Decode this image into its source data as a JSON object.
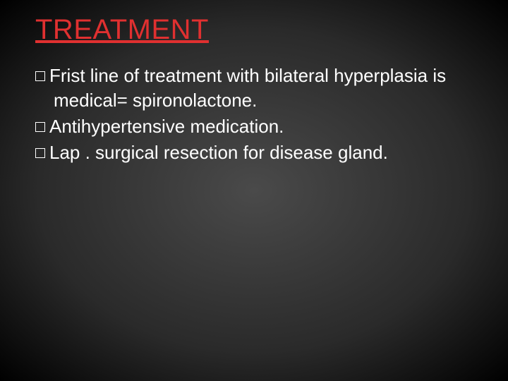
{
  "slide": {
    "title": "TREATMENT",
    "title_color": "#e03030",
    "title_fontsize": 40,
    "title_underline": true,
    "background": {
      "type": "radial-gradient",
      "center_color": "#4a4a4a",
      "mid_color": "#2a2a2a",
      "edge_color": "#000000"
    },
    "text_color": "#ffffff",
    "body_fontsize": 26,
    "bullets": [
      {
        "marker": "square-outline",
        "text": "Frist line of treatment with bilateral hyperplasia is medical= spironolactone."
      },
      {
        "marker": "square-outline",
        "text": "Antihypertensive medication."
      },
      {
        "marker": "square-outline",
        "text": "Lap . surgical resection for disease gland."
      }
    ],
    "bullet_marker_style": {
      "type": "square-outline",
      "size": 14,
      "border_color": "#ffffff",
      "border_width": 1.5
    }
  }
}
